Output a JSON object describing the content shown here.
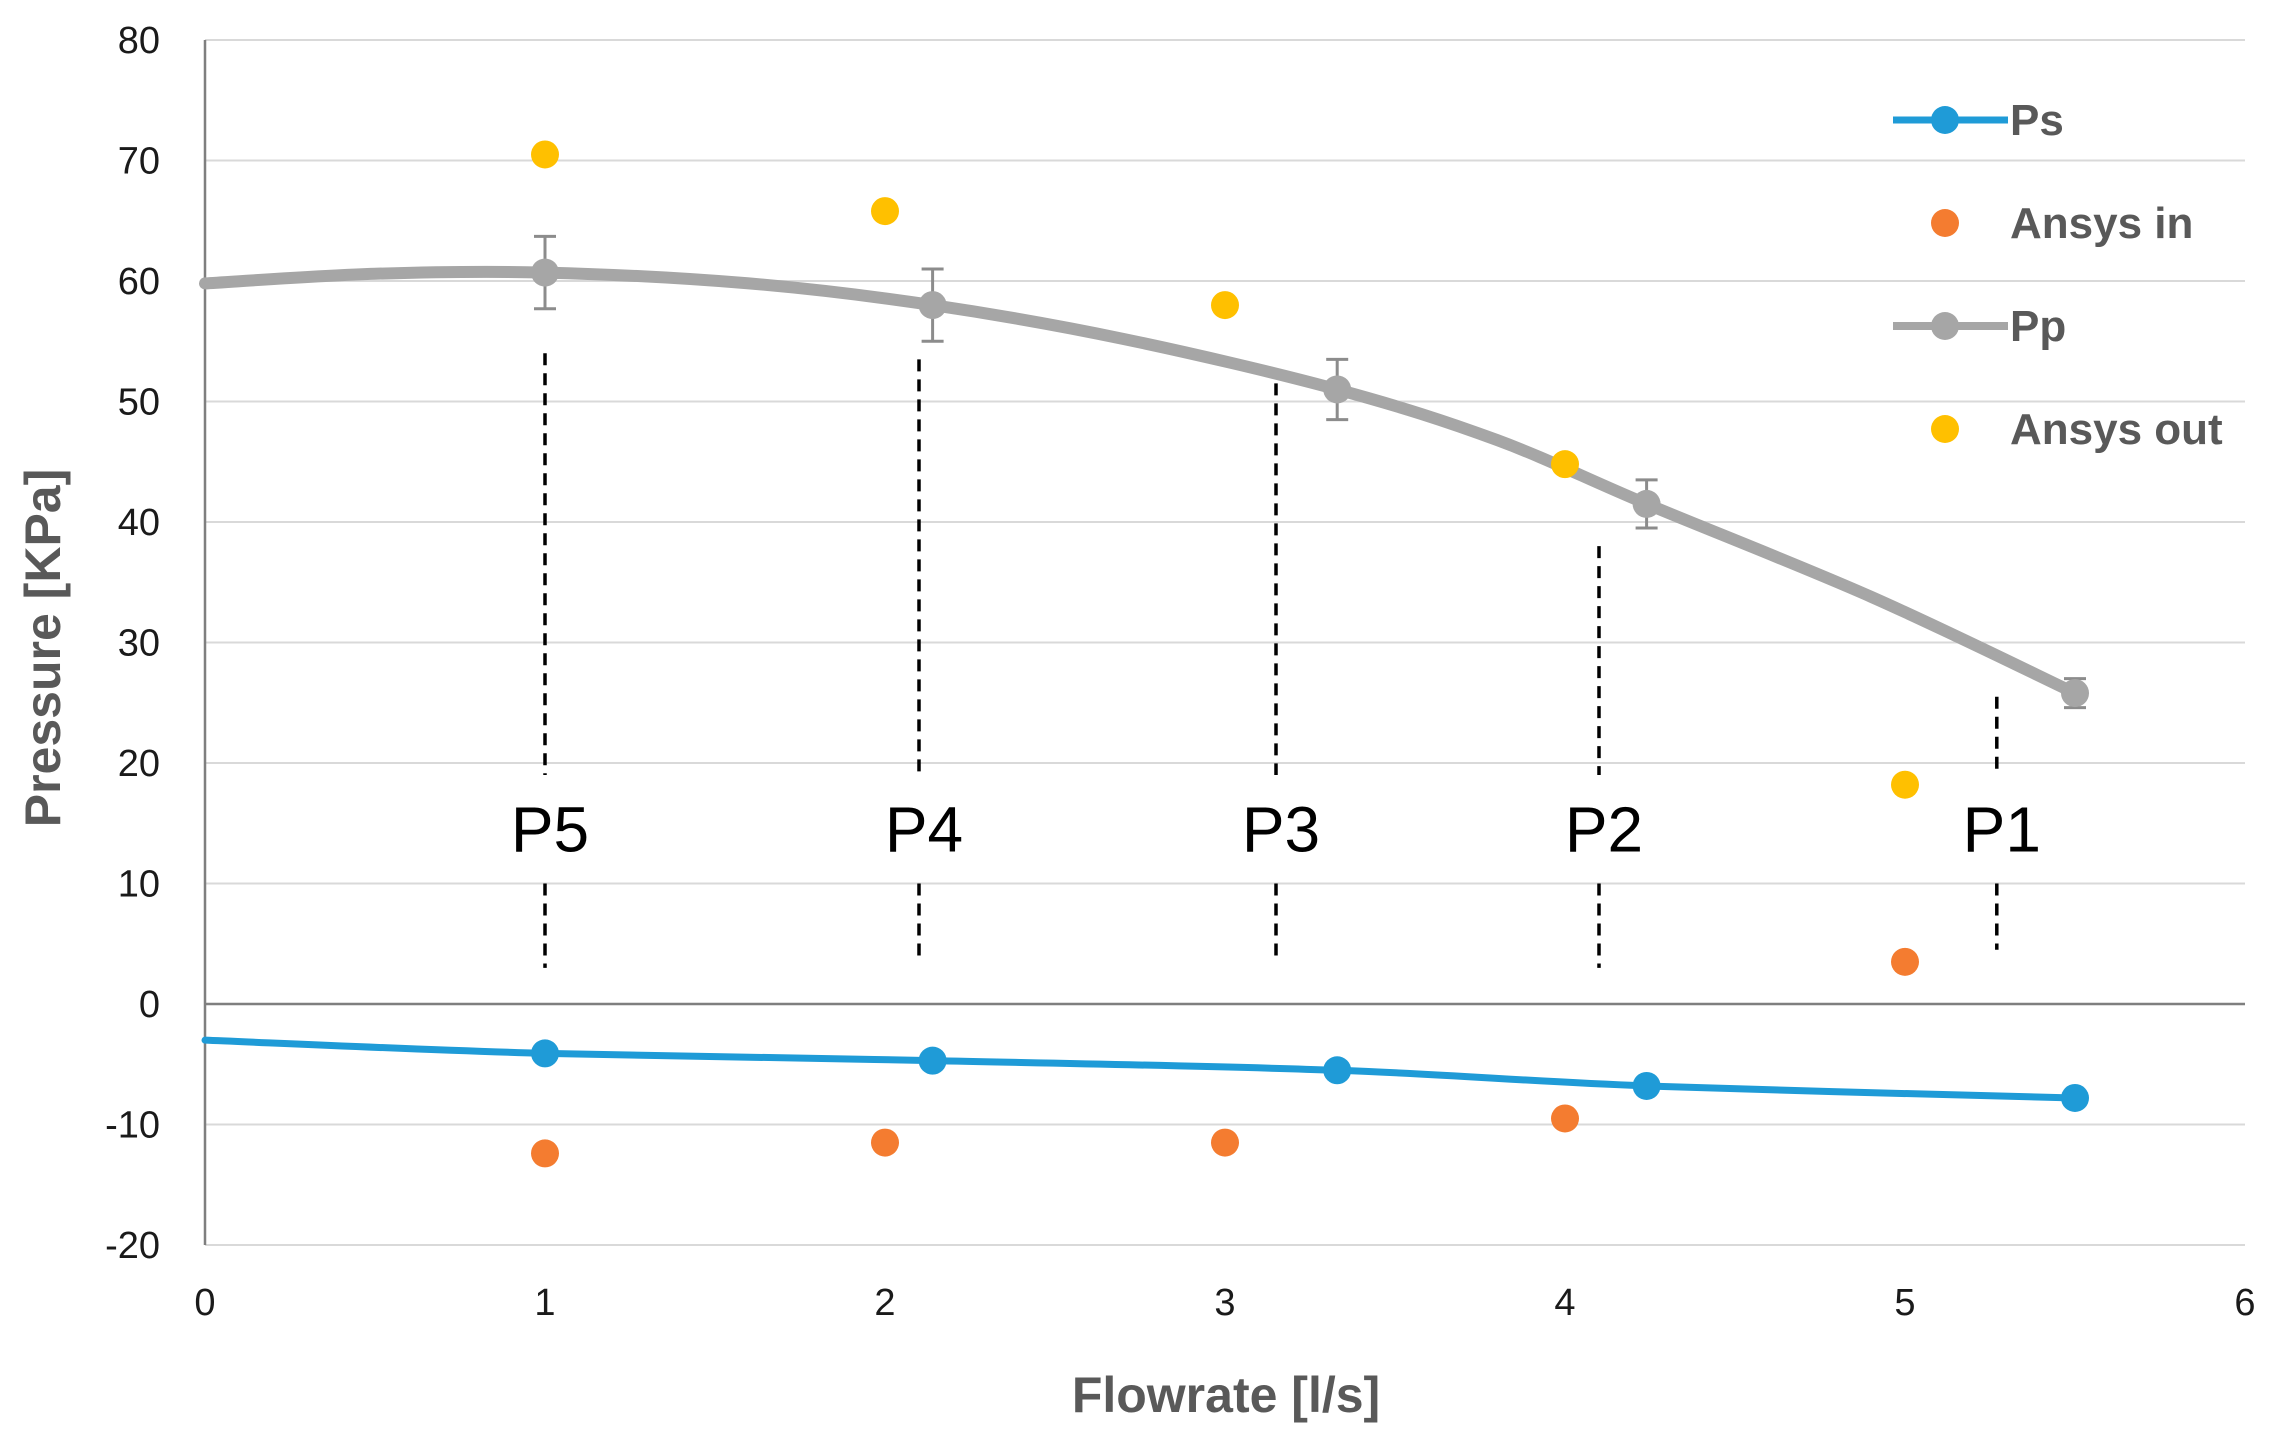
{
  "chart_data": {
    "type": "line",
    "xlabel": "Flowrate [l/s]",
    "ylabel": "Pressure [KPa]",
    "xlim": [
      0,
      6
    ],
    "ylim": [
      -20,
      80
    ],
    "x_ticks": [
      0,
      1,
      2,
      3,
      4,
      5,
      6
    ],
    "y_ticks": [
      -20,
      -10,
      0,
      10,
      20,
      30,
      40,
      50,
      60,
      70,
      80
    ],
    "grid": "horizontal",
    "legend_position": "right",
    "series": [
      {
        "name": "Ps",
        "kind": "line-markers",
        "color": "#1f9bd7",
        "x": [
          1.0,
          2.14,
          3.33,
          4.24,
          5.5
        ],
        "y": [
          -4.1,
          -4.7,
          -5.5,
          -6.8,
          -7.8
        ],
        "line_x": [
          0,
          1.0,
          2.14,
          3.33,
          4.24,
          5.5
        ],
        "line_y": [
          -3.0,
          -4.1,
          -4.7,
          -5.5,
          -6.8,
          -7.8
        ]
      },
      {
        "name": "Ansys in",
        "kind": "markers",
        "color": "#f47c30",
        "x": [
          1,
          2,
          3,
          4,
          5
        ],
        "y": [
          -12.4,
          -11.5,
          -11.5,
          -9.5,
          3.5
        ]
      },
      {
        "name": "Pp",
        "kind": "line-markers-errorbars",
        "color": "#a6a6a6",
        "x": [
          1.0,
          2.14,
          3.33,
          4.24,
          5.5
        ],
        "y": [
          60.7,
          58.0,
          51.0,
          41.5,
          25.8
        ],
        "error": [
          3.0,
          3.0,
          2.5,
          2.0,
          1.2
        ],
        "line_x": [
          0,
          0.5,
          1.0,
          1.6,
          2.14,
          2.7,
          3.33,
          3.8,
          4.24,
          4.9,
          5.5
        ],
        "line_y": [
          59.8,
          60.6,
          60.7,
          59.8,
          58.0,
          55.2,
          51.0,
          46.8,
          41.5,
          33.8,
          25.8
        ]
      },
      {
        "name": "Ansys out",
        "kind": "markers",
        "color": "#ffc000",
        "x": [
          1,
          2,
          3,
          4,
          5
        ],
        "y": [
          70.5,
          65.8,
          58.0,
          44.8,
          18.2
        ]
      }
    ],
    "annotations": [
      {
        "label": "P5",
        "x": 1.0,
        "line_top": 54,
        "line_bottom": 3
      },
      {
        "label": "P4",
        "x": 2.1,
        "line_top": 53.5,
        "line_bottom": 3.5
      },
      {
        "label": "P3",
        "x": 3.15,
        "line_top": 51.5,
        "line_bottom": 4
      },
      {
        "label": "P2",
        "x": 4.1,
        "line_top": 38,
        "line_bottom": 3
      },
      {
        "label": "P1",
        "x": 5.27,
        "line_top": 25.5,
        "line_bottom": 4.5
      }
    ]
  }
}
